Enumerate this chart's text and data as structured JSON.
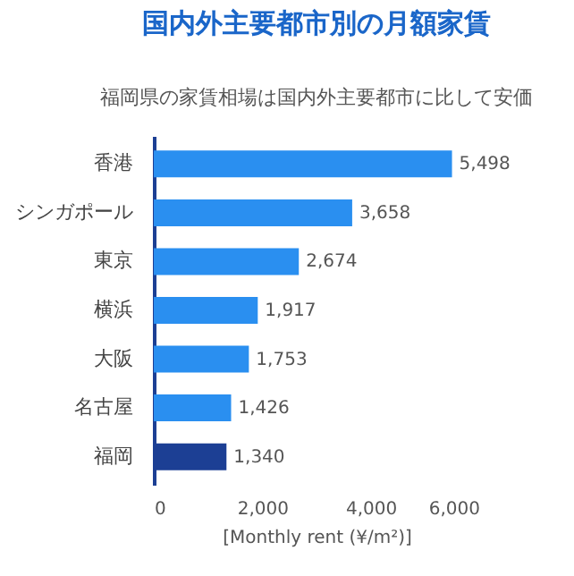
{
  "chart_data": {
    "type": "bar",
    "orientation": "horizontal",
    "title": "国内外主要都市別の月額家賃",
    "subtitle": "福岡県の家賃相場は国内外主要都市に比して安価",
    "xlabel": "[Monthly rent (¥/m²)]",
    "categories": [
      "香港",
      "シンガポール",
      "東京",
      "横浜",
      "大阪",
      "名古屋",
      "福岡"
    ],
    "values": [
      5498,
      3658,
      2674,
      1917,
      1753,
      1426,
      1340
    ],
    "colors": [
      "#2a8ff0",
      "#2a8ff0",
      "#2a8ff0",
      "#2a8ff0",
      "#2a8ff0",
      "#2a8ff0",
      "#1c3f94"
    ],
    "xlim": [
      0,
      6000
    ],
    "xticks": [
      0,
      {
        "value": 2000,
        "label": "2,000"
      },
      {
        "value": 4000,
        "label": "4,000"
      },
      {
        "value": 6000,
        "label": "6,000"
      }
    ],
    "value_labels": [
      "5,498",
      "3,658",
      "2,674",
      "1,917",
      "1,753",
      "1,426",
      "1,340"
    ],
    "grid": false,
    "legend": false
  }
}
